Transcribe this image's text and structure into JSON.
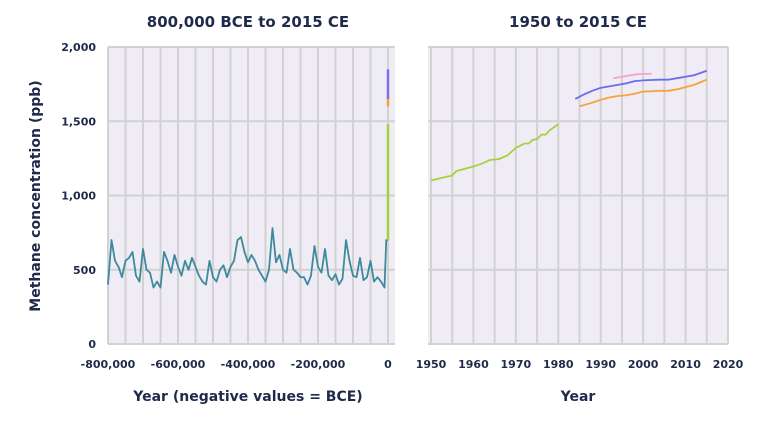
{
  "chart_data": [
    {
      "type": "line",
      "title": "800,000 BCE to 2015 CE",
      "xlabel": "Year (negative values = BCE)",
      "ylabel": "Methane concentration (ppb)",
      "xlim": [
        -800000,
        0
      ],
      "ylim": [
        0,
        2000
      ],
      "xticks": [
        "-800,000",
        "-600,000",
        "-400,000",
        "-200,000",
        "0"
      ],
      "yticks": [
        "0",
        "500",
        "1,000",
        "1,500",
        "2,000"
      ],
      "grid": true,
      "series": [
        {
          "color": "#3d8a9c",
          "x": [
            -800000,
            -790000,
            -780000,
            -770000,
            -760000,
            -750000,
            -740000,
            -730000,
            -720000,
            -710000,
            -700000,
            -690000,
            -680000,
            -670000,
            -660000,
            -650000,
            -640000,
            -630000,
            -620000,
            -610000,
            -600000,
            -590000,
            -580000,
            -570000,
            -560000,
            -550000,
            -540000,
            -530000,
            -520000,
            -510000,
            -500000,
            -490000,
            -480000,
            -470000,
            -460000,
            -450000,
            -440000,
            -430000,
            -420000,
            -410000,
            -400000,
            -390000,
            -380000,
            -370000,
            -360000,
            -350000,
            -340000,
            -330000,
            -320000,
            -310000,
            -300000,
            -290000,
            -280000,
            -270000,
            -260000,
            -250000,
            -240000,
            -230000,
            -220000,
            -210000,
            -200000,
            -190000,
            -180000,
            -170000,
            -160000,
            -150000,
            -140000,
            -130000,
            -120000,
            -110000,
            -100000,
            -90000,
            -80000,
            -70000,
            -60000,
            -50000,
            -40000,
            -30000,
            -20000,
            -10000,
            -5000,
            0
          ],
          "y": [
            400,
            700,
            560,
            520,
            450,
            560,
            580,
            620,
            460,
            420,
            640,
            500,
            480,
            380,
            420,
            380,
            620,
            560,
            480,
            600,
            520,
            460,
            560,
            500,
            580,
            520,
            460,
            420,
            400,
            560,
            450,
            420,
            500,
            530,
            450,
            520,
            560,
            700,
            720,
            620,
            550,
            600,
            560,
            500,
            460,
            420,
            500,
            780,
            550,
            600,
            500,
            480,
            640,
            500,
            480,
            450,
            450,
            400,
            460,
            660,
            520,
            480,
            640,
            460,
            430,
            470,
            400,
            440,
            700,
            560,
            460,
            450,
            580,
            430,
            450,
            560,
            420,
            450,
            420,
            380,
            700,
            700
          ]
        },
        {
          "color": "#a5d13e",
          "x": [
            0,
            0
          ],
          "y": [
            700,
            1480
          ]
        },
        {
          "color": "#f5a43a",
          "x": [
            0,
            0
          ],
          "y": [
            1600,
            1650
          ]
        },
        {
          "color": "#7a70e8",
          "x": [
            0,
            0
          ],
          "y": [
            1650,
            1850
          ]
        }
      ]
    },
    {
      "type": "line",
      "title": "1950 to 2015 CE",
      "xlabel": "Year",
      "xlim": [
        1950,
        2020
      ],
      "ylim": [
        0,
        2000
      ],
      "xticks": [
        "1950",
        "1960",
        "1970",
        "1980",
        "1990",
        "2000",
        "2010",
        "2020"
      ],
      "grid": true,
      "series": [
        {
          "color": "#a5d13e",
          "x": [
            1950,
            1952,
            1955,
            1956,
            1958,
            1960,
            1962,
            1964,
            1966,
            1968,
            1970,
            1972,
            1973,
            1974,
            1975,
            1976,
            1977,
            1978,
            1980
          ],
          "y": [
            1100,
            1115,
            1135,
            1165,
            1180,
            1195,
            1215,
            1240,
            1245,
            1270,
            1320,
            1350,
            1350,
            1375,
            1380,
            1410,
            1410,
            1440,
            1480
          ]
        },
        {
          "color": "#6b6bf0",
          "x": [
            1984,
            1986,
            1988,
            1990,
            1992,
            1994,
            1996,
            1998,
            2000,
            2002,
            2004,
            2006,
            2008,
            2010,
            2012,
            2015
          ],
          "y": [
            1650,
            1680,
            1705,
            1725,
            1735,
            1745,
            1755,
            1770,
            1775,
            1778,
            1780,
            1780,
            1790,
            1800,
            1810,
            1840
          ]
        },
        {
          "color": "#f5a43a",
          "x": [
            1985,
            1988,
            1990,
            1992,
            1994,
            1996,
            1998,
            2000,
            2002,
            2004,
            2006,
            2008,
            2010,
            2012,
            2015
          ],
          "y": [
            1600,
            1625,
            1645,
            1660,
            1670,
            1675,
            1685,
            1700,
            1702,
            1705,
            1705,
            1715,
            1730,
            1745,
            1780
          ]
        },
        {
          "color": "#f5a3d0",
          "x": [
            1993,
            1995,
            1997,
            1999,
            2002
          ],
          "y": [
            1790,
            1800,
            1810,
            1818,
            1820
          ]
        }
      ]
    }
  ]
}
